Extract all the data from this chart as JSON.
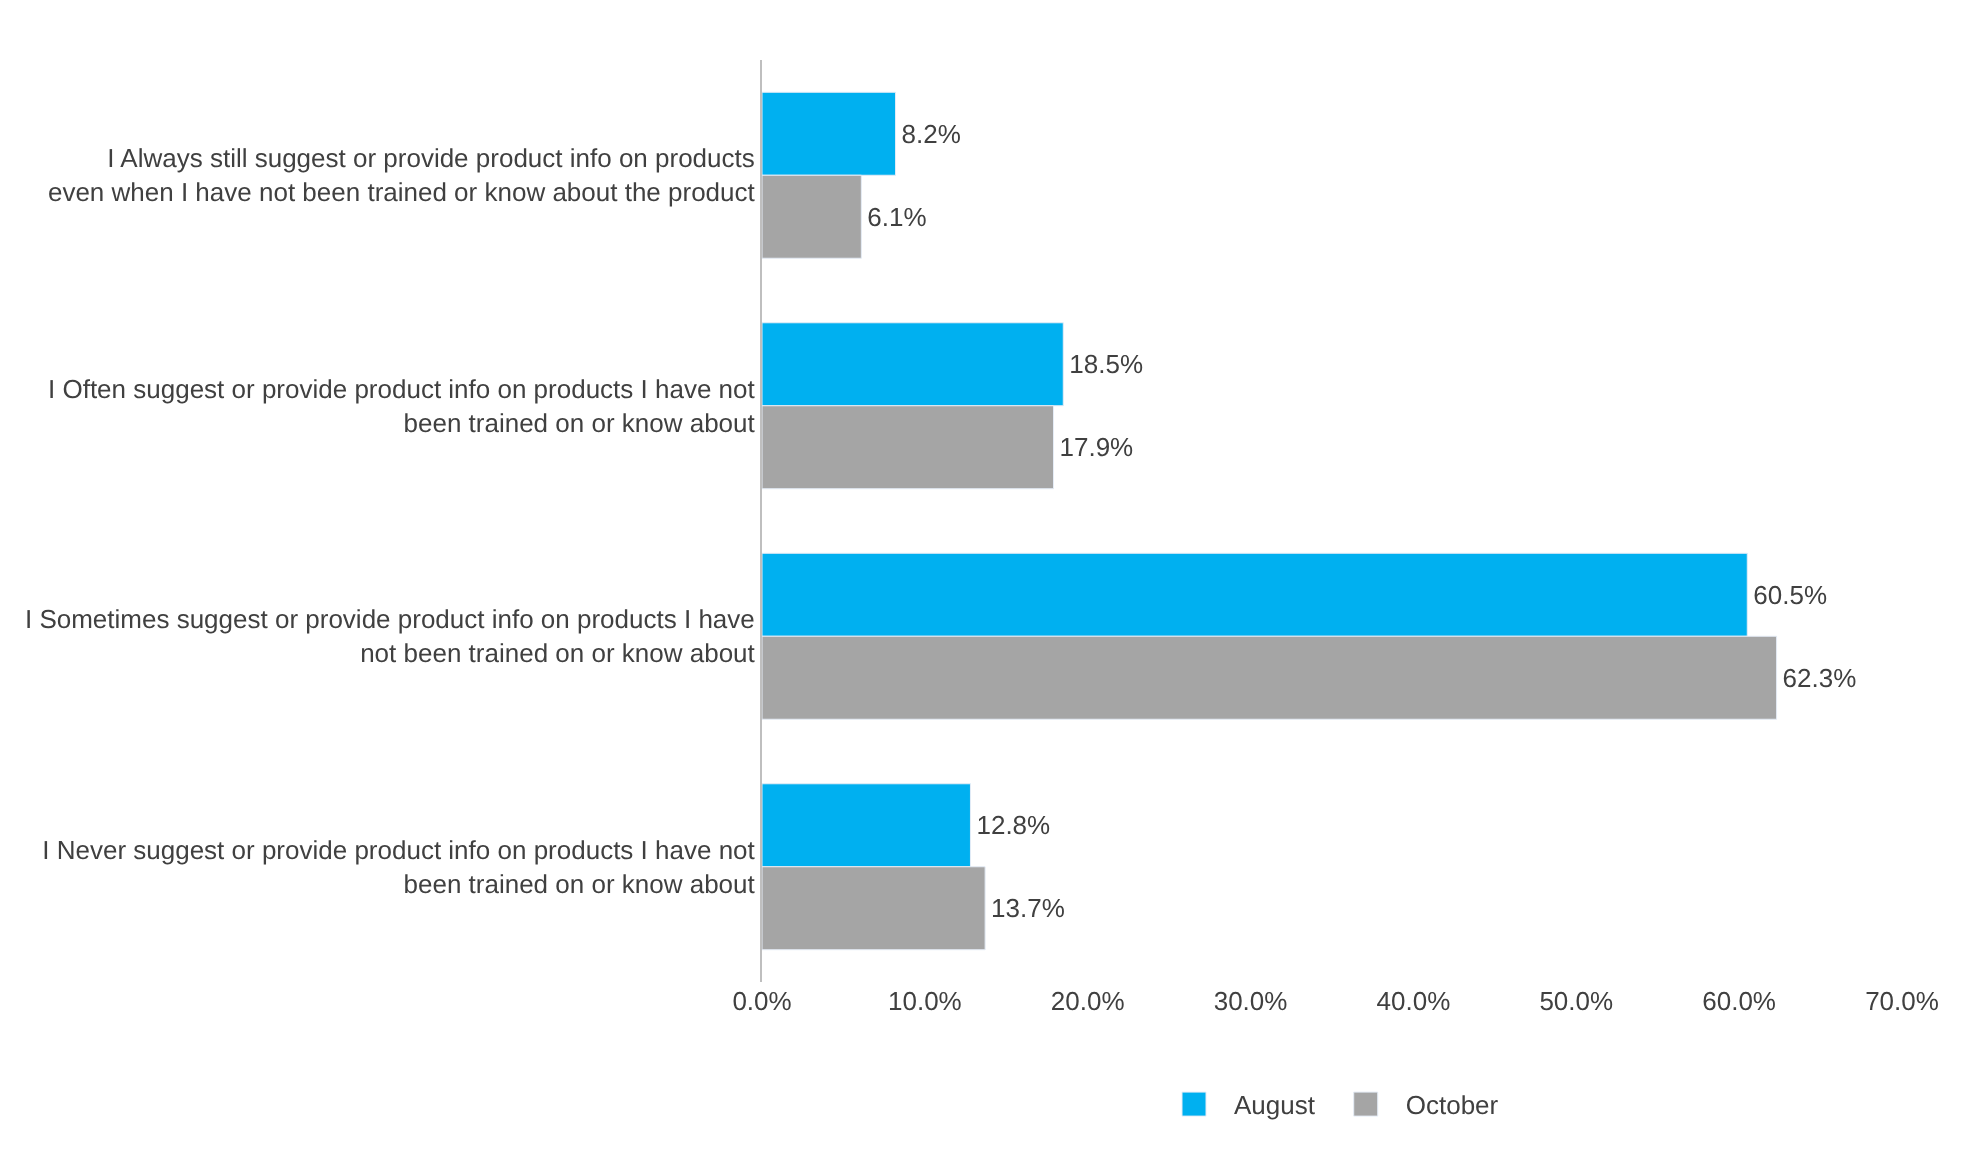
{
  "chart_data": {
    "type": "bar",
    "orientation": "horizontal",
    "categories": [
      "I Always still suggest or provide product info on products even when I have not been trained or know about the product",
      "I Often suggest or provide product info on products I have not been trained on or know about",
      "I Sometimes suggest or provide product info on products I have not been trained on or know about",
      "I Never suggest or provide product info on products I have not been trained on or know about"
    ],
    "series": [
      {
        "name": "August",
        "color": "#00b0f0",
        "values": [
          8.2,
          18.5,
          60.5,
          12.8
        ],
        "value_labels": [
          "8.2%",
          "18.5%",
          "60.5%",
          "12.8%"
        ]
      },
      {
        "name": "October",
        "color": "#a5a5a5",
        "values": [
          6.1,
          17.9,
          62.3,
          13.7
        ],
        "value_labels": [
          "6.1%",
          "17.9%",
          "62.3%",
          "13.7%"
        ]
      }
    ],
    "xlim": [
      0,
      70
    ],
    "xticks": [
      {
        "value": 0,
        "label": "0.0%"
      },
      {
        "value": 10,
        "label": "10.0%"
      },
      {
        "value": 20,
        "label": "20.0%"
      },
      {
        "value": 30,
        "label": "30.0%"
      },
      {
        "value": 40,
        "label": "40.0%"
      },
      {
        "value": 50,
        "label": "50.0%"
      },
      {
        "value": 60,
        "label": "60.0%"
      },
      {
        "value": 70,
        "label": "70.0%"
      }
    ],
    "legend": "bottom"
  }
}
